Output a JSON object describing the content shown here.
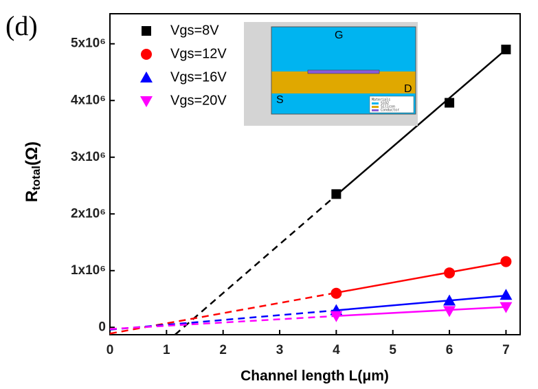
{
  "chart_data": {
    "type": "scatter",
    "panel_label": "(d)",
    "x_label": "Channel length L(μm)",
    "y_label": {
      "main": "R",
      "sub": "total",
      "rest": "(Ω)"
    },
    "xlim": [
      0,
      7.25
    ],
    "xticks": [
      0,
      1,
      2,
      3,
      4,
      5,
      6,
      7
    ],
    "ylim": [
      -130000,
      5530000
    ],
    "yticks": [
      {
        "value": 0,
        "label": "0"
      },
      {
        "value": 1000000,
        "label": "1x10⁶"
      },
      {
        "value": 2000000,
        "label": "2x10⁶"
      },
      {
        "value": 3000000,
        "label": "3x10⁶"
      },
      {
        "value": 4000000,
        "label": "4x10⁶"
      },
      {
        "value": 5000000,
        "label": "5x10⁶"
      }
    ],
    "series": [
      {
        "name": "Vgs=8V",
        "color": "#000000",
        "marker": "square",
        "x": [
          4,
          6,
          7
        ],
        "values": [
          2350000,
          3960000,
          4900000
        ],
        "fit": {
          "x": [
            1.15,
            4,
            7
          ],
          "y": [
            -130000,
            2330000,
            4900000
          ]
        }
      },
      {
        "name": "Vgs=12V",
        "color": "#ff0000",
        "marker": "circle",
        "x": [
          4,
          6,
          7
        ],
        "values": [
          600000,
          960000,
          1160000
        ],
        "fit": {
          "x": [
            0,
            4,
            7
          ],
          "y": [
            -110000,
            610000,
            1150000
          ]
        }
      },
      {
        "name": "Vgs=16V",
        "color": "#0000ff",
        "marker": "triangle-up",
        "x": [
          4,
          6,
          7
        ],
        "values": [
          300000,
          470000,
          570000
        ],
        "fit": {
          "x": [
            0,
            4,
            7
          ],
          "y": [
            -40000,
            300000,
            560000
          ]
        }
      },
      {
        "name": "Vgs=20V",
        "color": "#ff00ff",
        "marker": "triangle-down",
        "x": [
          4,
          6,
          7
        ],
        "values": [
          200000,
          290000,
          360000
        ],
        "fit": {
          "x": [
            0,
            4,
            7
          ],
          "y": [
            -30000,
            200000,
            360000
          ]
        }
      }
    ],
    "inset": {
      "labels": [
        "G",
        "S",
        "D"
      ],
      "materials_title": "Materials",
      "materials": [
        "SiO2",
        "Silicon",
        "Conductor"
      ]
    }
  }
}
